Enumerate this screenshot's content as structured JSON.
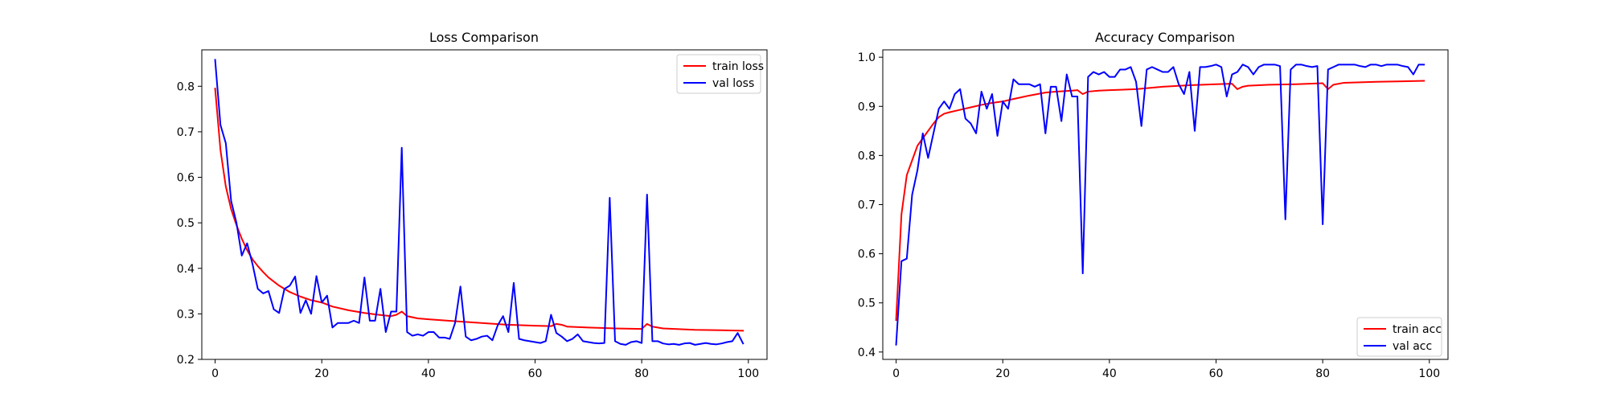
{
  "chart_data": [
    {
      "type": "line",
      "title": "Loss Comparison",
      "xlabel": "",
      "ylabel": "",
      "xlim": [
        -2.5,
        103.5
      ],
      "ylim": [
        0.2,
        0.88
      ],
      "x_ticks": [
        0,
        20,
        40,
        60,
        80,
        100
      ],
      "y_ticks": [
        0.2,
        0.3,
        0.4,
        0.5,
        0.6,
        0.7,
        0.8
      ],
      "legend_position": "top-right",
      "grid": false,
      "series": [
        {
          "name": "train loss",
          "color": "#ff0000",
          "x": [
            0,
            1,
            2,
            3,
            4,
            5,
            6,
            7,
            8,
            9,
            10,
            12,
            14,
            16,
            18,
            20,
            22,
            25,
            28,
            30,
            33,
            34,
            35,
            36,
            38,
            40,
            45,
            50,
            55,
            60,
            63,
            64,
            65,
            66,
            70,
            75,
            80,
            81,
            82,
            84,
            90,
            95,
            99
          ],
          "y": [
            0.795,
            0.66,
            0.58,
            0.53,
            0.495,
            0.465,
            0.44,
            0.42,
            0.405,
            0.392,
            0.38,
            0.362,
            0.348,
            0.338,
            0.33,
            0.325,
            0.316,
            0.308,
            0.302,
            0.299,
            0.295,
            0.298,
            0.305,
            0.295,
            0.29,
            0.288,
            0.284,
            0.28,
            0.276,
            0.274,
            0.273,
            0.278,
            0.276,
            0.272,
            0.27,
            0.268,
            0.267,
            0.278,
            0.272,
            0.268,
            0.265,
            0.264,
            0.263
          ]
        },
        {
          "name": "val loss",
          "color": "#0000ff",
          "x": [
            0,
            1,
            2,
            3,
            4,
            5,
            6,
            7,
            8,
            9,
            10,
            11,
            12,
            13,
            14,
            15,
            16,
            17,
            18,
            19,
            20,
            21,
            22,
            23,
            24,
            25,
            26,
            27,
            28,
            29,
            30,
            31,
            32,
            33,
            34,
            35,
            36,
            37,
            38,
            39,
            40,
            41,
            42,
            43,
            44,
            45,
            46,
            47,
            48,
            49,
            50,
            51,
            52,
            53,
            54,
            55,
            56,
            57,
            58,
            59,
            60,
            61,
            62,
            63,
            64,
            65,
            66,
            67,
            68,
            69,
            70,
            71,
            72,
            73,
            74,
            75,
            76,
            77,
            78,
            79,
            80,
            81,
            82,
            83,
            84,
            85,
            86,
            87,
            88,
            89,
            90,
            91,
            92,
            93,
            94,
            95,
            96,
            97,
            98,
            99
          ],
          "y": [
            0.858,
            0.715,
            0.675,
            0.548,
            0.5,
            0.428,
            0.455,
            0.41,
            0.355,
            0.345,
            0.35,
            0.31,
            0.302,
            0.355,
            0.362,
            0.382,
            0.302,
            0.33,
            0.3,
            0.383,
            0.325,
            0.34,
            0.27,
            0.28,
            0.28,
            0.28,
            0.285,
            0.28,
            0.38,
            0.285,
            0.285,
            0.355,
            0.26,
            0.305,
            0.305,
            0.665,
            0.26,
            0.252,
            0.255,
            0.252,
            0.26,
            0.26,
            0.248,
            0.248,
            0.245,
            0.28,
            0.36,
            0.25,
            0.242,
            0.245,
            0.25,
            0.252,
            0.242,
            0.275,
            0.295,
            0.26,
            0.368,
            0.245,
            0.242,
            0.24,
            0.238,
            0.236,
            0.24,
            0.298,
            0.258,
            0.25,
            0.24,
            0.245,
            0.255,
            0.24,
            0.238,
            0.236,
            0.235,
            0.236,
            0.555,
            0.24,
            0.234,
            0.232,
            0.238,
            0.24,
            0.236,
            0.562,
            0.24,
            0.24,
            0.235,
            0.233,
            0.234,
            0.232,
            0.235,
            0.236,
            0.232,
            0.234,
            0.236,
            0.234,
            0.233,
            0.235,
            0.238,
            0.24,
            0.258,
            0.235
          ]
        }
      ]
    },
    {
      "type": "line",
      "title": "Accuracy Comparison",
      "xlabel": "",
      "ylabel": "",
      "xlim": [
        -2.5,
        103.5
      ],
      "ylim": [
        0.385,
        1.015
      ],
      "x_ticks": [
        0,
        20,
        40,
        60,
        80,
        100
      ],
      "y_ticks": [
        0.4,
        0.5,
        0.6,
        0.7,
        0.8,
        0.9,
        1.0
      ],
      "legend_position": "bottom-right",
      "grid": false,
      "series": [
        {
          "name": "train acc",
          "color": "#ff0000",
          "x": [
            0,
            1,
            2,
            3,
            4,
            5,
            6,
            7,
            8,
            9,
            10,
            12,
            14,
            16,
            18,
            20,
            22,
            25,
            28,
            30,
            33,
            34,
            35,
            36,
            38,
            40,
            45,
            50,
            55,
            60,
            63,
            64,
            65,
            66,
            70,
            75,
            80,
            81,
            82,
            84,
            90,
            95,
            99
          ],
          "y": [
            0.465,
            0.68,
            0.76,
            0.79,
            0.82,
            0.835,
            0.85,
            0.865,
            0.878,
            0.885,
            0.888,
            0.893,
            0.898,
            0.903,
            0.907,
            0.91,
            0.915,
            0.922,
            0.928,
            0.93,
            0.932,
            0.933,
            0.925,
            0.93,
            0.932,
            0.933,
            0.935,
            0.94,
            0.943,
            0.945,
            0.946,
            0.935,
            0.94,
            0.942,
            0.944,
            0.945,
            0.947,
            0.935,
            0.944,
            0.948,
            0.95,
            0.951,
            0.952
          ]
        },
        {
          "name": "val acc",
          "color": "#0000ff",
          "x": [
            0,
            1,
            2,
            3,
            4,
            5,
            6,
            7,
            8,
            9,
            10,
            11,
            12,
            13,
            14,
            15,
            16,
            17,
            18,
            19,
            20,
            21,
            22,
            23,
            24,
            25,
            26,
            27,
            28,
            29,
            30,
            31,
            32,
            33,
            34,
            35,
            36,
            37,
            38,
            39,
            40,
            41,
            42,
            43,
            44,
            45,
            46,
            47,
            48,
            49,
            50,
            51,
            52,
            53,
            54,
            55,
            56,
            57,
            58,
            59,
            60,
            61,
            62,
            63,
            64,
            65,
            66,
            67,
            68,
            69,
            70,
            71,
            72,
            73,
            74,
            75,
            76,
            77,
            78,
            79,
            80,
            81,
            82,
            83,
            84,
            85,
            86,
            87,
            88,
            89,
            90,
            91,
            92,
            93,
            94,
            95,
            96,
            97,
            98,
            99
          ],
          "y": [
            0.415,
            0.585,
            0.59,
            0.72,
            0.77,
            0.845,
            0.795,
            0.845,
            0.895,
            0.91,
            0.895,
            0.925,
            0.935,
            0.875,
            0.865,
            0.845,
            0.93,
            0.895,
            0.925,
            0.84,
            0.91,
            0.895,
            0.955,
            0.945,
            0.945,
            0.945,
            0.94,
            0.945,
            0.845,
            0.94,
            0.94,
            0.87,
            0.965,
            0.92,
            0.92,
            0.56,
            0.96,
            0.97,
            0.965,
            0.97,
            0.96,
            0.96,
            0.975,
            0.975,
            0.98,
            0.95,
            0.86,
            0.975,
            0.98,
            0.975,
            0.97,
            0.97,
            0.98,
            0.945,
            0.925,
            0.97,
            0.85,
            0.98,
            0.98,
            0.982,
            0.985,
            0.98,
            0.92,
            0.965,
            0.97,
            0.985,
            0.98,
            0.965,
            0.98,
            0.985,
            0.985,
            0.985,
            0.982,
            0.67,
            0.975,
            0.985,
            0.985,
            0.982,
            0.98,
            0.982,
            0.66,
            0.975,
            0.98,
            0.985,
            0.985,
            0.985,
            0.985,
            0.982,
            0.98,
            0.985,
            0.985,
            0.982,
            0.985,
            0.985,
            0.985,
            0.982,
            0.98,
            0.965,
            0.985,
            0.985
          ]
        }
      ]
    }
  ]
}
